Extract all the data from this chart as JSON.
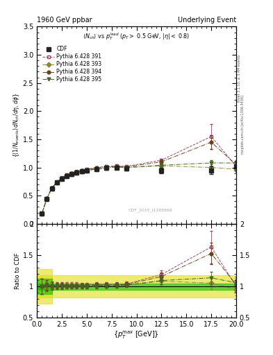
{
  "title_left": "1960 GeV ppbar",
  "title_right": "Underlying Event",
  "subtitle": "$\\langle N_{ch}\\rangle$ vs $p_T^{lead}$ ($p_T >$ 0.5 GeV, $|\\eta| <$ 0.8)",
  "ylabel_main": "$(1/N_{events})\\,dN_{ch}/d\\eta\\,d\\phi$",
  "ylabel_ratio": "Ratio to CDF",
  "xlabel": "$\\{p_T^{max}$ [GeV]$\\}$",
  "watermark": "CDF_2015_I1388868",
  "right_label_top": "Rivet 3.1.10, ≥ 3.4M events",
  "right_label_bot": "mcplots.cern.ch [arXiv:1306.3436]",
  "xlim": [
    0,
    20
  ],
  "ylim_main": [
    0,
    3.5
  ],
  "ylim_ratio": [
    0.5,
    2.0
  ],
  "cdf_x": [
    0.5,
    1.0,
    1.5,
    2.0,
    2.5,
    3.0,
    3.5,
    4.0,
    4.5,
    5.0,
    6.0,
    7.0,
    8.0,
    9.0,
    12.5,
    17.5,
    20.0
  ],
  "cdf_y": [
    0.18,
    0.44,
    0.63,
    0.73,
    0.8,
    0.85,
    0.88,
    0.91,
    0.93,
    0.95,
    0.97,
    0.99,
    1.0,
    0.98,
    0.95,
    0.95,
    1.02
  ],
  "cdf_yerr": [
    0.02,
    0.03,
    0.03,
    0.03,
    0.03,
    0.03,
    0.03,
    0.03,
    0.03,
    0.03,
    0.03,
    0.03,
    0.03,
    0.03,
    0.05,
    0.07,
    0.08
  ],
  "p391_x": [
    0.5,
    1.0,
    1.5,
    2.0,
    2.5,
    3.0,
    3.5,
    4.0,
    4.5,
    5.0,
    6.0,
    7.0,
    8.0,
    9.0,
    12.5,
    17.5,
    20.0
  ],
  "p391_y": [
    0.18,
    0.45,
    0.64,
    0.74,
    0.82,
    0.87,
    0.9,
    0.93,
    0.95,
    0.97,
    1.0,
    1.02,
    1.03,
    1.02,
    1.13,
    1.55,
    1.02
  ],
  "p391_yerr": [
    0.01,
    0.02,
    0.02,
    0.02,
    0.02,
    0.02,
    0.02,
    0.02,
    0.02,
    0.02,
    0.02,
    0.02,
    0.02,
    0.02,
    0.03,
    0.22,
    0.05
  ],
  "p393_x": [
    0.5,
    1.0,
    1.5,
    2.0,
    2.5,
    3.0,
    3.5,
    4.0,
    4.5,
    5.0,
    6.0,
    7.0,
    8.0,
    9.0,
    12.5,
    17.5,
    20.0
  ],
  "p393_y": [
    0.18,
    0.44,
    0.63,
    0.73,
    0.8,
    0.85,
    0.88,
    0.91,
    0.93,
    0.95,
    0.97,
    0.99,
    1.01,
    1.0,
    1.03,
    1.0,
    0.97
  ],
  "p393_yerr": [
    0.01,
    0.01,
    0.01,
    0.01,
    0.01,
    0.01,
    0.01,
    0.01,
    0.01,
    0.01,
    0.01,
    0.01,
    0.01,
    0.01,
    0.02,
    0.05,
    0.05
  ],
  "p394_x": [
    0.5,
    1.0,
    1.5,
    2.0,
    2.5,
    3.0,
    3.5,
    4.0,
    4.5,
    5.0,
    6.0,
    7.0,
    8.0,
    9.0,
    12.5,
    17.5,
    20.0
  ],
  "p394_y": [
    0.18,
    0.45,
    0.64,
    0.74,
    0.81,
    0.86,
    0.89,
    0.92,
    0.94,
    0.96,
    0.99,
    1.01,
    1.02,
    1.01,
    1.1,
    1.45,
    1.05
  ],
  "p394_yerr": [
    0.01,
    0.01,
    0.01,
    0.01,
    0.01,
    0.01,
    0.01,
    0.01,
    0.01,
    0.01,
    0.01,
    0.01,
    0.01,
    0.01,
    0.02,
    0.12,
    0.05
  ],
  "p395_x": [
    0.5,
    1.0,
    1.5,
    2.0,
    2.5,
    3.0,
    3.5,
    4.0,
    4.5,
    5.0,
    6.0,
    7.0,
    8.0,
    9.0,
    12.5,
    17.5,
    20.0
  ],
  "p395_y": [
    0.18,
    0.44,
    0.63,
    0.73,
    0.8,
    0.85,
    0.88,
    0.91,
    0.93,
    0.95,
    0.97,
    1.0,
    1.01,
    1.0,
    1.04,
    1.08,
    1.08
  ],
  "p395_yerr": [
    0.01,
    0.01,
    0.01,
    0.01,
    0.01,
    0.01,
    0.01,
    0.01,
    0.01,
    0.01,
    0.01,
    0.01,
    0.01,
    0.01,
    0.02,
    0.05,
    0.05
  ],
  "cdf_color": "#222222",
  "p391_color": "#994466",
  "p393_color": "#888833",
  "p394_color": "#664422",
  "p395_color": "#446622",
  "band_green_lo": 0.95,
  "band_green_hi": 1.05,
  "band_yellow_lo": 0.82,
  "band_yellow_hi": 1.18
}
